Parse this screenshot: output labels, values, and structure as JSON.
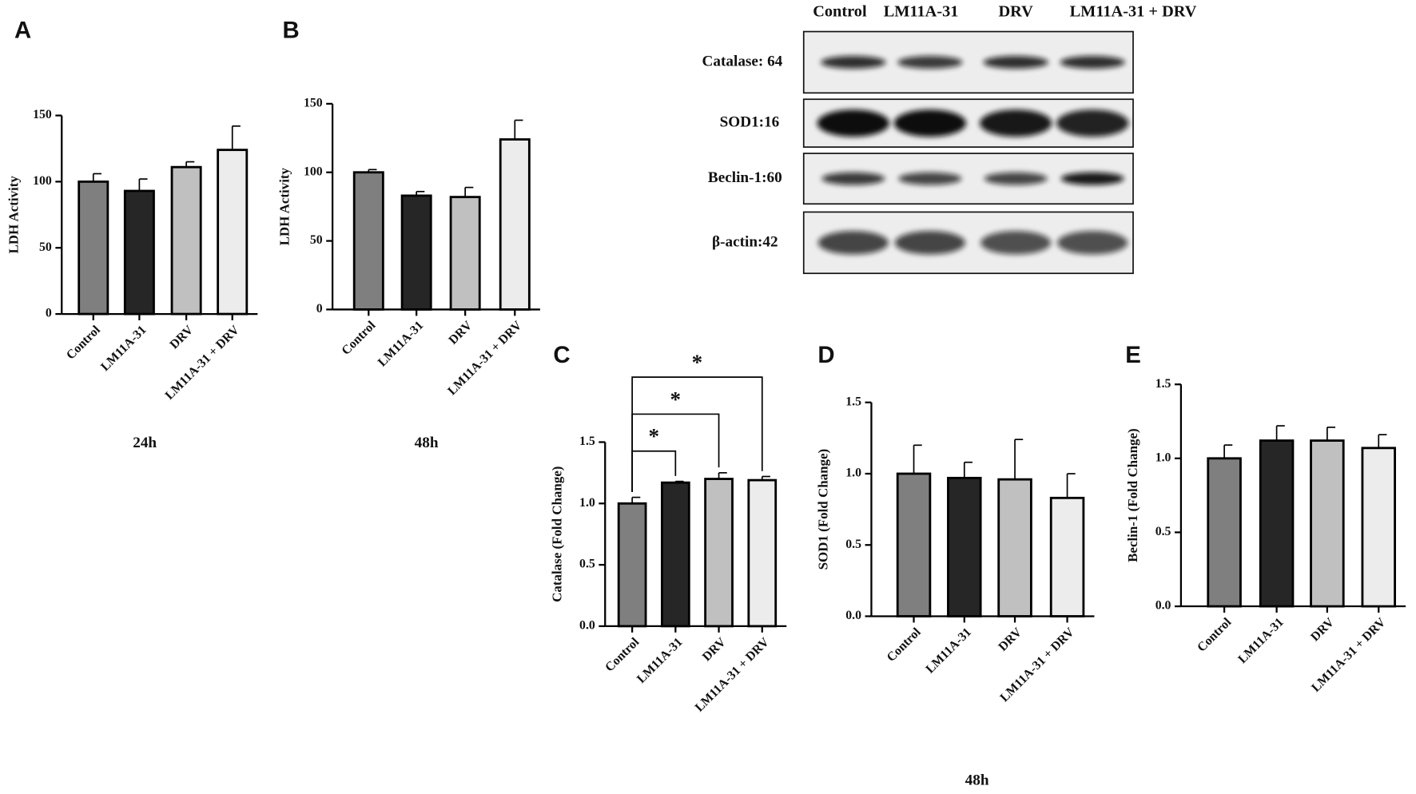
{
  "chart_data": [
    {
      "type": "bar",
      "panel": "A",
      "ylabel": "LDH Activity",
      "caption": "24h",
      "categories": [
        "Control",
        "LM11A-31",
        "DRV",
        "LM11A-31 + DRV"
      ],
      "values": [
        100,
        93,
        111,
        124
      ],
      "errors": [
        6,
        9,
        4,
        18
      ],
      "colors": [
        "#7f7f7f",
        "#262626",
        "#c0c0c0",
        "#ececec"
      ],
      "ylim": [
        0,
        150
      ],
      "yticks": [
        0,
        50,
        100,
        150
      ]
    },
    {
      "type": "bar",
      "panel": "B",
      "ylabel": "LDH Activity",
      "caption": "48h",
      "categories": [
        "Control",
        "LM11A-31",
        "DRV",
        "LM11A-31 + DRV"
      ],
      "values": [
        100,
        83,
        82,
        124
      ],
      "errors": [
        2,
        3,
        7,
        14
      ],
      "colors": [
        "#7f7f7f",
        "#262626",
        "#c0c0c0",
        "#ececec"
      ],
      "ylim": [
        0,
        150
      ],
      "yticks": [
        0,
        50,
        100,
        150
      ]
    },
    {
      "type": "bar",
      "panel": "C",
      "ylabel": "Catalase (Fold Change)",
      "categories": [
        "Control",
        "LM11A-31",
        "DRV",
        "LM11A-31 + DRV"
      ],
      "values": [
        1.0,
        1.17,
        1.2,
        1.19
      ],
      "errors": [
        0.05,
        0.01,
        0.05,
        0.03
      ],
      "colors": [
        "#7f7f7f",
        "#262626",
        "#c0c0c0",
        "#ececec"
      ],
      "ylim": [
        0,
        1.5
      ],
      "yticks": [
        {
          "value": 0,
          "label": "0.0"
        },
        0.5,
        {
          "value": 1,
          "label": "1.0"
        },
        1.5
      ],
      "annotations": [
        "*",
        "*",
        "*"
      ]
    },
    {
      "type": "bar",
      "panel": "D",
      "ylabel": "SOD1 (Fold Change)",
      "caption": "48h",
      "categories": [
        "Control",
        "LM11A-31",
        "DRV",
        "LM11A-31 + DRV"
      ],
      "values": [
        1.0,
        0.97,
        0.96,
        0.83
      ],
      "errors": [
        0.2,
        0.11,
        0.28,
        0.17
      ],
      "colors": [
        "#7f7f7f",
        "#262626",
        "#c0c0c0",
        "#ececec"
      ],
      "ylim": [
        0,
        1.5
      ],
      "yticks": [
        {
          "value": 0,
          "label": "0.0"
        },
        0.5,
        {
          "value": 1,
          "label": "1.0"
        },
        1.5
      ]
    },
    {
      "type": "bar",
      "panel": "E",
      "ylabel": "Beclin-1 (Fold Change)",
      "categories": [
        "Control",
        "LM11A-31",
        "DRV",
        "LM11A-31 + DRV"
      ],
      "values": [
        1.0,
        1.12,
        1.12,
        1.07
      ],
      "errors": [
        0.09,
        0.1,
        0.09,
        0.09
      ],
      "colors": [
        "#7f7f7f",
        "#262626",
        "#c0c0c0",
        "#ececec"
      ],
      "ylim": [
        0,
        1.5
      ],
      "yticks": [
        {
          "value": 0,
          "label": "0.0"
        },
        0.5,
        {
          "value": 1,
          "label": "1.0"
        },
        1.5
      ]
    }
  ],
  "blot": {
    "lanes": [
      "Control",
      "LM11A-31",
      "DRV",
      "LM11A-31 + DRV"
    ],
    "rows": [
      "Catalase: 64",
      "SOD1:16",
      "Beclin-1:60",
      "β-actin:42"
    ]
  }
}
